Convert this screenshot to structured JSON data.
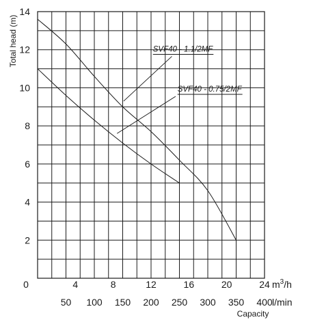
{
  "chart_data": {
    "type": "line",
    "ylabel": "Total head  (m)",
    "xlabel": "Capacity",
    "x_unit_top": "m3/h",
    "x_unit_bottom": "l/min",
    "xlim": [
      0,
      24
    ],
    "ylim": [
      0,
      14
    ],
    "x_ticks_top": [
      "0",
      "4",
      "8",
      "12",
      "16",
      "20",
      "24"
    ],
    "x_ticks_bottom": [
      "50",
      "100",
      "150",
      "200",
      "250",
      "300",
      "350",
      "400"
    ],
    "y_ticks": [
      "2",
      "4",
      "6",
      "8",
      "10",
      "12",
      "14"
    ],
    "grid": true,
    "series": [
      {
        "name": "SVF40 - 1.1/2MF",
        "points": [
          [
            0,
            13.6
          ],
          [
            3,
            12.3
          ],
          [
            6,
            10.6
          ],
          [
            9,
            9.0
          ],
          [
            12,
            7.7
          ],
          [
            15,
            6.2
          ],
          [
            18,
            4.6
          ],
          [
            21,
            2.0
          ]
        ]
      },
      {
        "name": "SVF40 - 0.75/2MF",
        "points": [
          [
            0,
            11.0
          ],
          [
            3,
            9.6
          ],
          [
            6,
            8.3
          ],
          [
            9,
            7.1
          ],
          [
            12,
            6.0
          ],
          [
            15,
            5.0
          ]
        ]
      }
    ]
  }
}
